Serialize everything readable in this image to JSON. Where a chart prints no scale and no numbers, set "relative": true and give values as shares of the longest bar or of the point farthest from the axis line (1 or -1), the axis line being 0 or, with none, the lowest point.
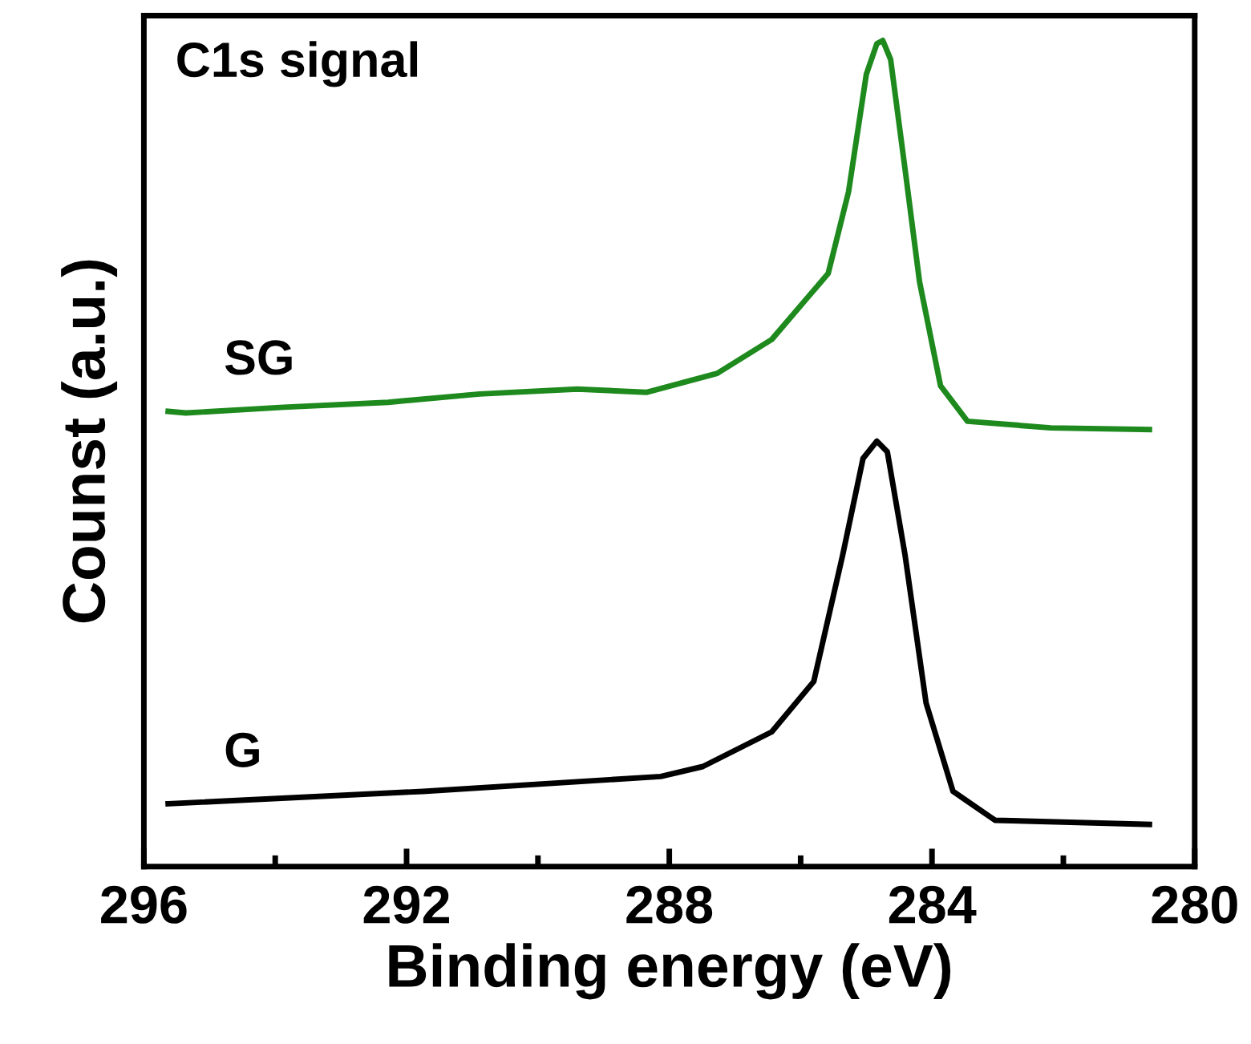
{
  "chart_data": {
    "type": "line",
    "title": "C1s signal",
    "xlabel": "Binding energy (eV)",
    "ylabel": "Counst (a.u.)",
    "relative": true,
    "tick_labels": "x",
    "legend": false,
    "grid": false,
    "xlim": [
      296,
      280
    ],
    "xticks": [
      296,
      {
        "value": 294,
        "label": null
      },
      292,
      {
        "value": 290,
        "label": null
      },
      288,
      {
        "value": 286,
        "label": null
      },
      284,
      {
        "value": 282,
        "label": null
      },
      280
    ],
    "series": [
      {
        "name": "SG",
        "color": "#1e8a1e",
        "x": [
          295.63,
          295.36,
          293.87,
          292.28,
          290.89,
          289.4,
          288.35,
          287.27,
          286.44,
          285.58,
          285.27,
          285.0,
          284.84,
          284.75,
          284.63,
          284.41,
          284.19,
          283.87,
          283.46,
          282.19,
          280.69
        ],
        "values": [
          0.551,
          0.549,
          0.556,
          0.562,
          0.572,
          0.578,
          0.574,
          0.597,
          0.638,
          0.718,
          0.817,
          0.959,
          0.996,
          1.0,
          0.977,
          0.844,
          0.708,
          0.582,
          0.539,
          0.531,
          0.529
        ]
      },
      {
        "name": "G",
        "color": "#000000",
        "x": [
          295.63,
          291.75,
          288.13,
          287.49,
          286.44,
          285.8,
          285.36,
          285.05,
          284.84,
          284.68,
          284.41,
          284.09,
          283.68,
          283.04,
          280.69
        ],
        "values": [
          0.076,
          0.091,
          0.109,
          0.121,
          0.163,
          0.224,
          0.377,
          0.494,
          0.515,
          0.502,
          0.377,
          0.198,
          0.091,
          0.056,
          0.051
        ]
      }
    ]
  }
}
